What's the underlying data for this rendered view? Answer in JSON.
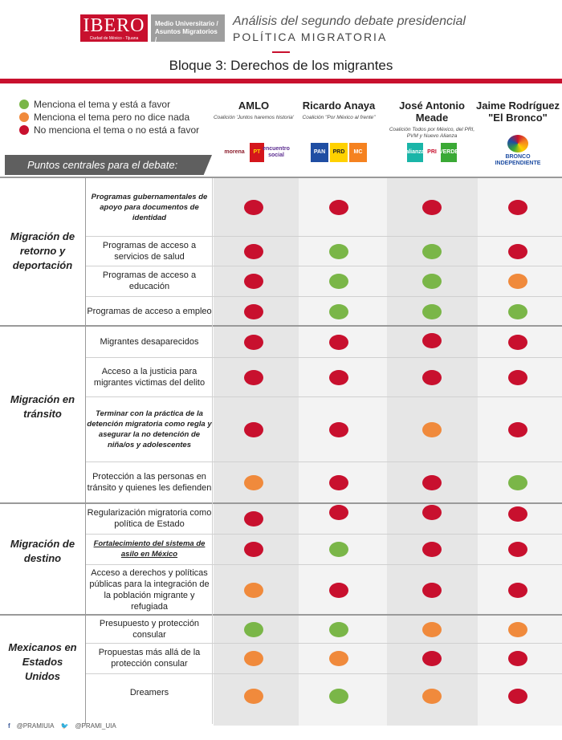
{
  "header": {
    "logo_text": "IBERO",
    "logo_subtext": "Ciudad de México - Tijuana",
    "logo2_text": "Medio Universitario / Asuntos Migratorios /",
    "title": "Análisis del segundo debate presidencial",
    "subtitle": "POLÍTICA MIGRATORIA",
    "bloque": "Bloque 3: Derechos de los migrantes"
  },
  "colors": {
    "green": "#7ab648",
    "orange": "#f08a3c",
    "red": "#c8102e",
    "column_shade": "#e6e6e6"
  },
  "legend": [
    {
      "color": "green",
      "label": "Menciona el tema y está a favor"
    },
    {
      "color": "orange",
      "label": "Menciona el tema pero no dice nada"
    },
    {
      "color": "red",
      "label": "No menciona el tema o no está a favor"
    }
  ],
  "candidates": [
    {
      "name": "AMLO",
      "coalition": "Coalición 'Juntos haremos historia'",
      "parties": [
        "morena",
        "PT",
        "encuentro social"
      ]
    },
    {
      "name": "Ricardo Anaya",
      "coalition": "Coalición \"Por México al frente\"",
      "parties": [
        "PAN",
        "PRD",
        "MC"
      ]
    },
    {
      "name": "José Antonio Meade",
      "coalition": "Coalición Todos por México, del PRI, PVM y Nuevo Alianza",
      "parties": [
        "alianza",
        "PRI",
        "VERDE"
      ]
    },
    {
      "name": "Jaime Rodríguez \"El Bronco\"",
      "coalition": "",
      "parties": [
        "BRONCO INDEPENDIENTE"
      ]
    }
  ],
  "puntos_header": "Puntos centrales para el debate:",
  "sections": [
    {
      "label": "Migración de retorno y deportación",
      "rows": [
        {
          "topic": "Programas gubernamentales de apoyo para documentos de identidad",
          "style": "bold-italic",
          "marks": [
            "red",
            "red",
            "red",
            "red"
          ]
        },
        {
          "topic": "Programas de acceso a servicios de salud",
          "style": "normal",
          "marks": [
            "red",
            "green",
            "green",
            "red"
          ]
        },
        {
          "topic": "Programas de acceso a educación",
          "style": "normal",
          "marks": [
            "red",
            "green",
            "green",
            "orange"
          ]
        },
        {
          "topic": "Programas de acceso a empleo",
          "style": "normal",
          "marks": [
            "red",
            "green",
            "green",
            "green"
          ]
        }
      ]
    },
    {
      "label": "Migración en tránsito",
      "rows": [
        {
          "topic": "Migrantes desaparecidos",
          "style": "normal",
          "marks": [
            "red",
            "red",
            "red",
            "red"
          ]
        },
        {
          "topic": "Acceso a la justicia para migrantes victimas del delito",
          "style": "normal",
          "marks": [
            "red",
            "red",
            "red",
            "red"
          ]
        },
        {
          "topic": "Terminar con la práctica de la detención migratoria como regla y asegurar la no detención de niña/os y adolescentes",
          "style": "bold-italic",
          "marks": [
            "red",
            "red",
            "orange",
            "red"
          ]
        },
        {
          "topic": "Protección a las personas en tránsito y quienes les defienden",
          "style": "normal",
          "marks": [
            "orange",
            "red",
            "red",
            "green"
          ]
        }
      ]
    },
    {
      "label": "Migración de destino",
      "rows": [
        {
          "topic": "Regularización migratoria como política de Estado",
          "style": "normal",
          "marks": [
            "red",
            "red",
            "red",
            "red"
          ]
        },
        {
          "topic": "Fortalecimiento del sistema de asilo en México",
          "style": "bold-italic-underline",
          "marks": [
            "red",
            "green",
            "red",
            "red"
          ]
        },
        {
          "topic": "Acceso a derechos y políticas públicas para la integración de la población migrante y refugiada",
          "style": "normal",
          "marks": [
            "orange",
            "red",
            "red",
            "red"
          ]
        }
      ]
    },
    {
      "label": "Mexicanos en Estados Unidos",
      "rows": [
        {
          "topic": "Presupuesto y protección consular",
          "style": "normal",
          "marks": [
            "green",
            "green",
            "orange",
            "orange"
          ]
        },
        {
          "topic": "Propuestas más allá de la protección consular",
          "style": "normal",
          "marks": [
            "orange",
            "orange",
            "red",
            "red"
          ]
        },
        {
          "topic": "Dreamers",
          "style": "normal",
          "marks": [
            "orange",
            "green",
            "orange",
            "red"
          ]
        }
      ]
    }
  ],
  "footer": {
    "facebook": "@PRAMIUIA",
    "twitter": "@PRAMI_UIA"
  }
}
